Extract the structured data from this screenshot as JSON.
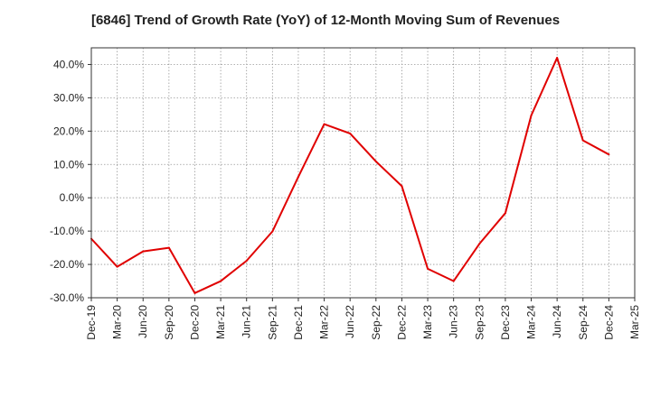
{
  "chart_data": {
    "type": "line",
    "title": "[6846]  Trend of Growth Rate (YoY) of 12-Month Moving Sum of Revenues",
    "xlabel": "",
    "ylabel": "",
    "ylim": [
      -30,
      45
    ],
    "y_ticks": [
      -30,
      -20,
      -10,
      0,
      10,
      20,
      30,
      40
    ],
    "y_tick_labels": [
      "-30.0%",
      "-20.0%",
      "-10.0%",
      "0.0%",
      "10.0%",
      "20.0%",
      "30.0%",
      "40.0%"
    ],
    "categories": [
      "Dec-19",
      "Mar-20",
      "Jun-20",
      "Sep-20",
      "Dec-20",
      "Mar-21",
      "Jun-21",
      "Sep-21",
      "Dec-21",
      "Mar-22",
      "Jun-22",
      "Sep-22",
      "Dec-22",
      "Mar-23",
      "Jun-23",
      "Sep-23",
      "Dec-23",
      "Mar-24",
      "Jun-24",
      "Sep-24",
      "Dec-24",
      "Mar-25"
    ],
    "grid": true,
    "grid_style": "dotted",
    "colors": {
      "line": "#e00000",
      "grid": "#999999",
      "axis": "#333333",
      "text": "#222222"
    },
    "series": [
      {
        "values": [
          -12.3,
          -20.7,
          -16.1,
          -15.0,
          -28.6,
          -25.0,
          -18.9,
          -10.1,
          6.3,
          22.1,
          19.3,
          10.9,
          3.5,
          -21.3,
          -25.0,
          -13.8,
          -4.6,
          24.7,
          42.0,
          17.2,
          13.0,
          null
        ]
      }
    ]
  }
}
